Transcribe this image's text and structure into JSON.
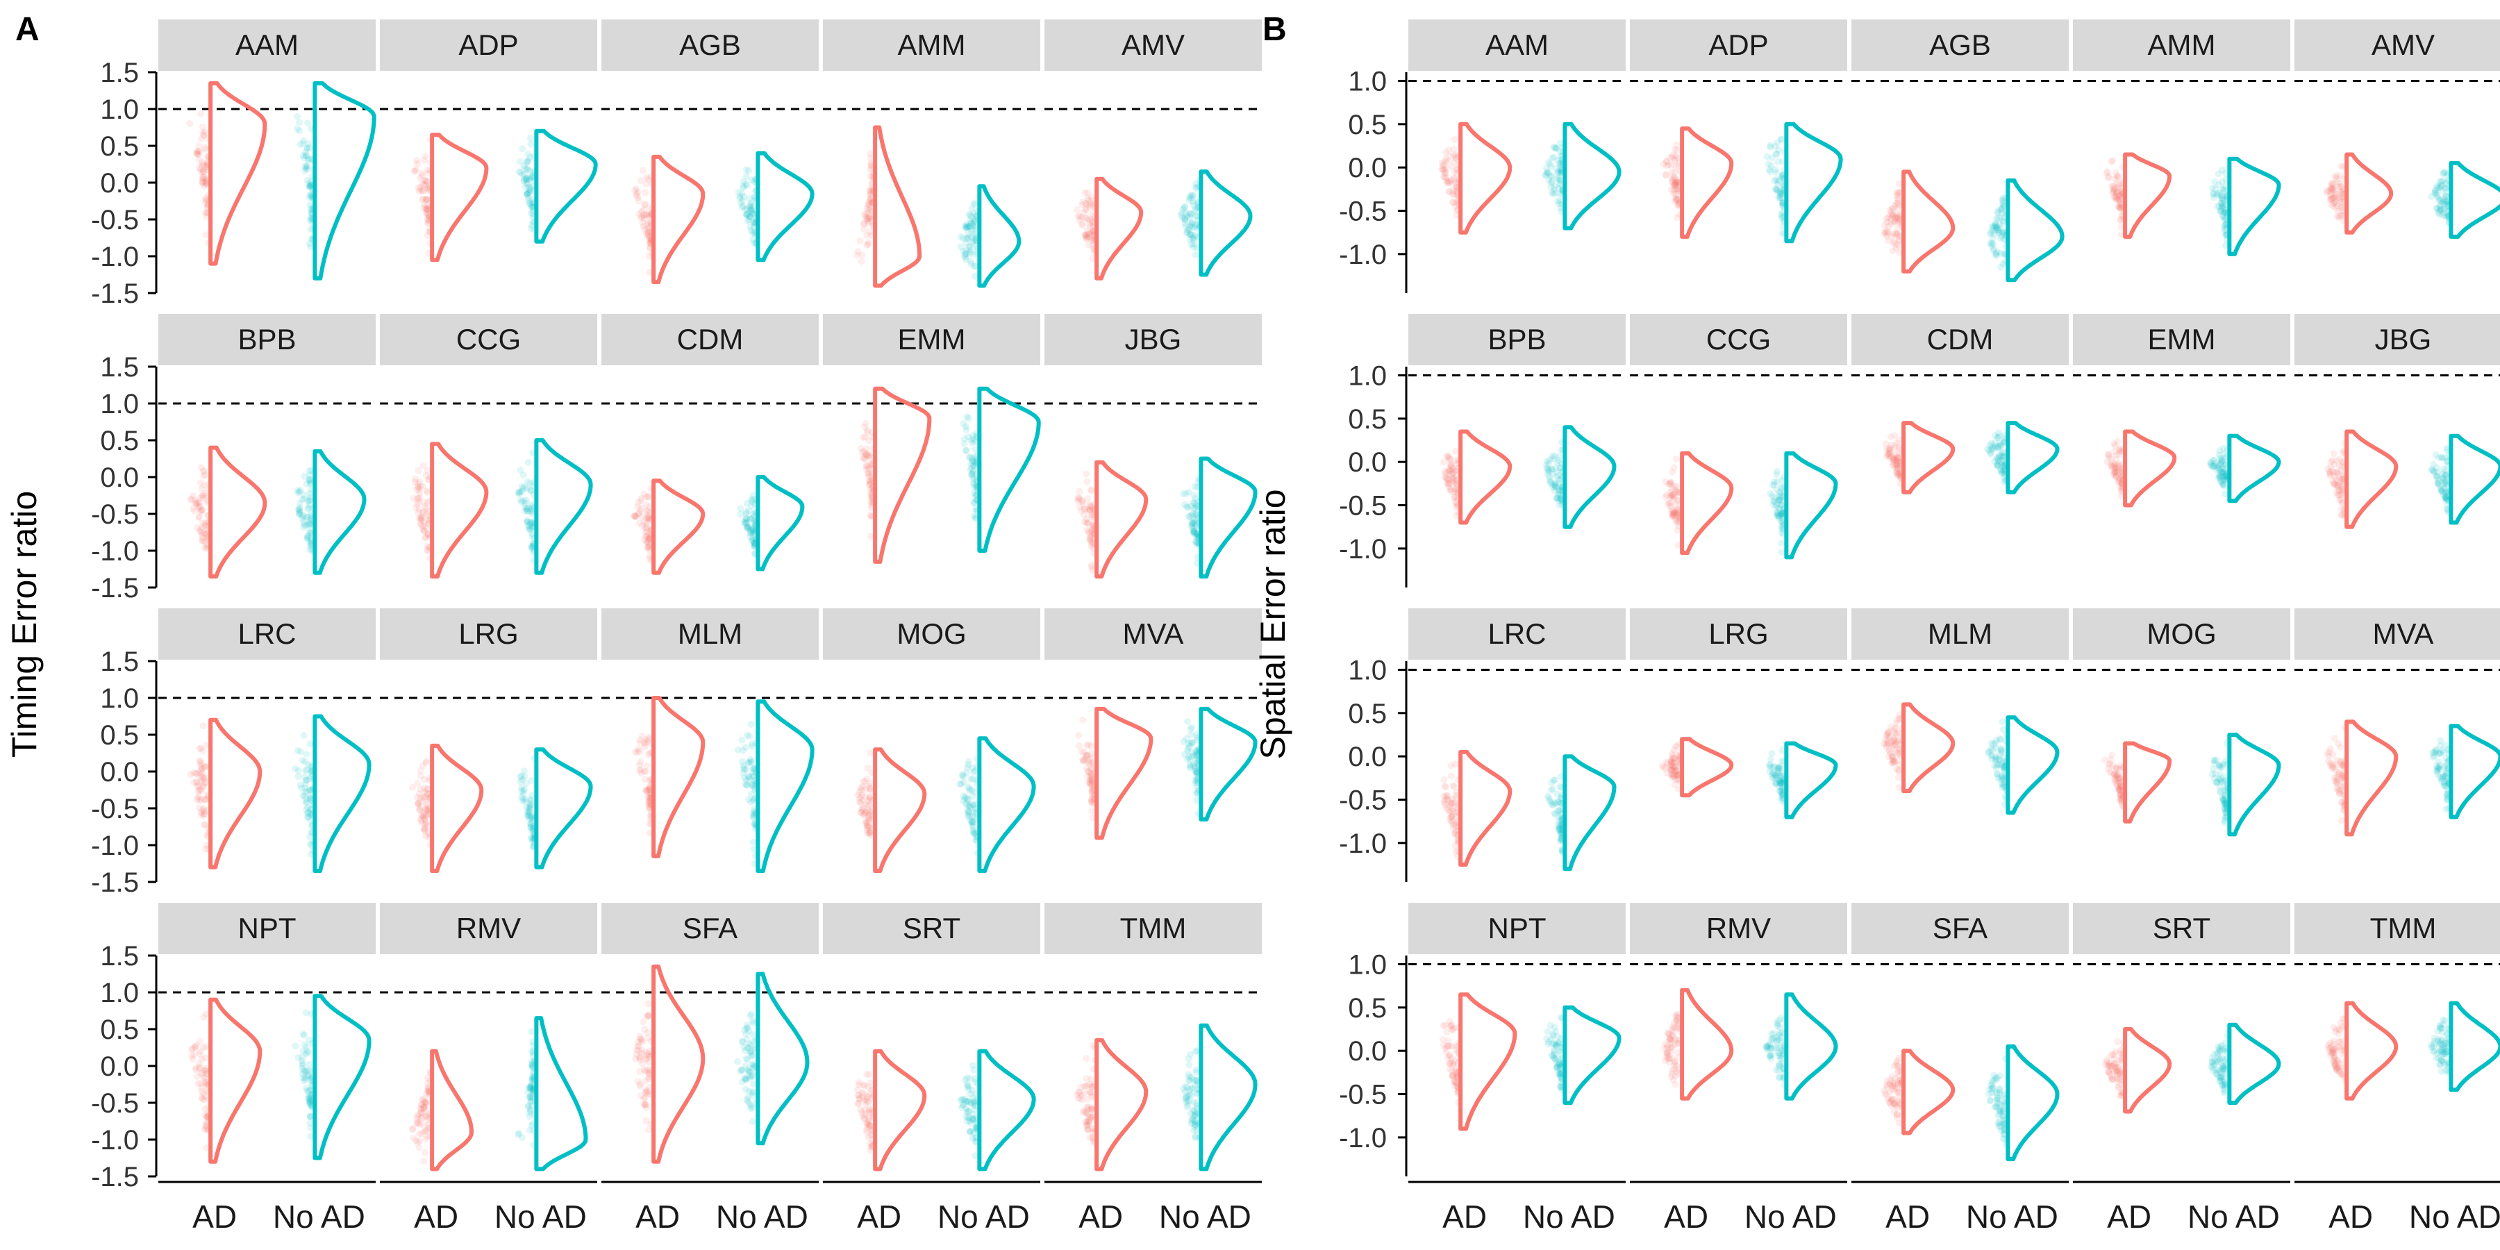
{
  "colors": {
    "ad": "#F8766D",
    "no_ad": "#00BFC4",
    "strip": "#D9D9D9",
    "reference_line": "#000000"
  },
  "chart_data": [
    {
      "type": "violin",
      "panel_label": "A",
      "ylabel": "Timing Error ratio",
      "xlabel": "",
      "x_categories": [
        "AD",
        "No AD"
      ],
      "y_ticks": [
        "-1.5",
        "-1.0",
        "-0.5",
        "0.0",
        "0.5",
        "1.0",
        "1.5"
      ],
      "ylim": [
        -1.5,
        1.5
      ],
      "reference_line": 1.0,
      "facets": [
        {
          "name": "AAM",
          "AD": {
            "min": -1.1,
            "max": 1.35,
            "mode": 0.8,
            "width": 0.55
          },
          "No AD": {
            "min": -1.3,
            "max": 1.35,
            "mode": 0.9,
            "width": 0.6
          }
        },
        {
          "name": "ADP",
          "AD": {
            "min": -1.05,
            "max": 0.65,
            "mode": 0.2,
            "width": 0.55
          },
          "No AD": {
            "min": -0.8,
            "max": 0.7,
            "mode": 0.25,
            "width": 0.6
          }
        },
        {
          "name": "AGB",
          "AD": {
            "min": -1.35,
            "max": 0.35,
            "mode": -0.15,
            "width": 0.5
          },
          "No AD": {
            "min": -1.05,
            "max": 0.4,
            "mode": -0.15,
            "width": 0.55
          }
        },
        {
          "name": "AMM",
          "AD": {
            "min": -1.4,
            "max": 0.75,
            "mode": -1.0,
            "width": 0.45
          },
          "No AD": {
            "min": -1.4,
            "max": -0.05,
            "mode": -0.8,
            "width": 0.4
          }
        },
        {
          "name": "AMV",
          "AD": {
            "min": -1.3,
            "max": 0.05,
            "mode": -0.4,
            "width": 0.45
          },
          "No AD": {
            "min": -1.25,
            "max": 0.15,
            "mode": -0.45,
            "width": 0.5
          }
        },
        {
          "name": "BPB",
          "AD": {
            "min": -1.35,
            "max": 0.4,
            "mode": -0.35,
            "width": 0.55
          },
          "No AD": {
            "min": -1.3,
            "max": 0.35,
            "mode": -0.3,
            "width": 0.5
          }
        },
        {
          "name": "CCG",
          "AD": {
            "min": -1.35,
            "max": 0.45,
            "mode": -0.2,
            "width": 0.55
          },
          "No AD": {
            "min": -1.3,
            "max": 0.5,
            "mode": -0.1,
            "width": 0.55
          }
        },
        {
          "name": "CDM",
          "AD": {
            "min": -1.3,
            "max": -0.05,
            "mode": -0.5,
            "width": 0.5
          },
          "No AD": {
            "min": -1.25,
            "max": 0.0,
            "mode": -0.4,
            "width": 0.45
          }
        },
        {
          "name": "EMM",
          "AD": {
            "min": -1.15,
            "max": 1.2,
            "mode": 0.8,
            "width": 0.55
          },
          "No AD": {
            "min": -1.0,
            "max": 1.2,
            "mode": 0.75,
            "width": 0.6
          }
        },
        {
          "name": "JBG",
          "AD": {
            "min": -1.35,
            "max": 0.2,
            "mode": -0.3,
            "width": 0.5
          },
          "No AD": {
            "min": -1.35,
            "max": 0.25,
            "mode": -0.2,
            "width": 0.55
          }
        },
        {
          "name": "LRC",
          "AD": {
            "min": -1.3,
            "max": 0.7,
            "mode": 0.0,
            "width": 0.5
          },
          "No AD": {
            "min": -1.35,
            "max": 0.75,
            "mode": 0.1,
            "width": 0.55
          }
        },
        {
          "name": "LRG",
          "AD": {
            "min": -1.35,
            "max": 0.35,
            "mode": -0.25,
            "width": 0.5
          },
          "No AD": {
            "min": -1.3,
            "max": 0.3,
            "mode": -0.2,
            "width": 0.55
          }
        },
        {
          "name": "MLM",
          "AD": {
            "min": -1.15,
            "max": 1.0,
            "mode": 0.4,
            "width": 0.5
          },
          "No AD": {
            "min": -1.35,
            "max": 0.95,
            "mode": 0.3,
            "width": 0.55
          }
        },
        {
          "name": "MOG",
          "AD": {
            "min": -1.35,
            "max": 0.3,
            "mode": -0.3,
            "width": 0.5
          },
          "No AD": {
            "min": -1.35,
            "max": 0.45,
            "mode": -0.2,
            "width": 0.55
          }
        },
        {
          "name": "MVA",
          "AD": {
            "min": -0.9,
            "max": 0.85,
            "mode": 0.45,
            "width": 0.55
          },
          "No AD": {
            "min": -0.65,
            "max": 0.85,
            "mode": 0.4,
            "width": 0.55
          }
        },
        {
          "name": "NPT",
          "AD": {
            "min": -1.3,
            "max": 0.9,
            "mode": 0.2,
            "width": 0.5
          },
          "No AD": {
            "min": -1.25,
            "max": 0.95,
            "mode": 0.35,
            "width": 0.55
          }
        },
        {
          "name": "RMV",
          "AD": {
            "min": -1.4,
            "max": 0.2,
            "mode": -0.9,
            "width": 0.4
          },
          "No AD": {
            "min": -1.4,
            "max": 0.65,
            "mode": -1.0,
            "width": 0.5
          }
        },
        {
          "name": "SFA",
          "AD": {
            "min": -1.3,
            "max": 1.35,
            "mode": 0.1,
            "width": 0.5
          },
          "No AD": {
            "min": -1.05,
            "max": 1.25,
            "mode": 0.05,
            "width": 0.5
          }
        },
        {
          "name": "SRT",
          "AD": {
            "min": -1.4,
            "max": 0.2,
            "mode": -0.4,
            "width": 0.5
          },
          "No AD": {
            "min": -1.4,
            "max": 0.2,
            "mode": -0.45,
            "width": 0.55
          }
        },
        {
          "name": "TMM",
          "AD": {
            "min": -1.4,
            "max": 0.35,
            "mode": -0.35,
            "width": 0.5
          },
          "No AD": {
            "min": -1.4,
            "max": 0.55,
            "mode": -0.25,
            "width": 0.55
          }
        }
      ]
    },
    {
      "type": "violin",
      "panel_label": "B",
      "ylabel": "Spatial Error ratio",
      "xlabel": "",
      "x_categories": [
        "AD",
        "No AD"
      ],
      "y_ticks": [
        "-1.0",
        "-0.5",
        "0.0",
        "0.5",
        "1.0"
      ],
      "ylim": [
        -1.45,
        1.1
      ],
      "reference_line": 1.0,
      "facets": [
        {
          "name": "AAM",
          "AD": {
            "min": -0.75,
            "max": 0.5,
            "mode": 0.0,
            "width": 0.5
          },
          "No AD": {
            "min": -0.7,
            "max": 0.5,
            "mode": -0.05,
            "width": 0.55
          }
        },
        {
          "name": "ADP",
          "AD": {
            "min": -0.8,
            "max": 0.45,
            "mode": 0.05,
            "width": 0.5
          },
          "No AD": {
            "min": -0.85,
            "max": 0.5,
            "mode": 0.1,
            "width": 0.55
          }
        },
        {
          "name": "AGB",
          "AD": {
            "min": -1.2,
            "max": -0.05,
            "mode": -0.7,
            "width": 0.5
          },
          "No AD": {
            "min": -1.3,
            "max": -0.15,
            "mode": -0.8,
            "width": 0.55
          }
        },
        {
          "name": "AMM",
          "AD": {
            "min": -0.8,
            "max": 0.15,
            "mode": -0.1,
            "width": 0.45
          },
          "No AD": {
            "min": -1.0,
            "max": 0.1,
            "mode": -0.2,
            "width": 0.5
          }
        },
        {
          "name": "AMV",
          "AD": {
            "min": -0.75,
            "max": 0.15,
            "mode": -0.3,
            "width": 0.45
          },
          "No AD": {
            "min": -0.8,
            "max": 0.05,
            "mode": -0.35,
            "width": 0.55
          }
        },
        {
          "name": "BPB",
          "AD": {
            "min": -0.7,
            "max": 0.35,
            "mode": -0.05,
            "width": 0.5
          },
          "No AD": {
            "min": -0.75,
            "max": 0.4,
            "mode": -0.05,
            "width": 0.5
          }
        },
        {
          "name": "CCG",
          "AD": {
            "min": -1.05,
            "max": 0.1,
            "mode": -0.3,
            "width": 0.5
          },
          "No AD": {
            "min": -1.1,
            "max": 0.1,
            "mode": -0.25,
            "width": 0.5
          }
        },
        {
          "name": "CDM",
          "AD": {
            "min": -0.35,
            "max": 0.45,
            "mode": 0.15,
            "width": 0.5
          },
          "No AD": {
            "min": -0.35,
            "max": 0.45,
            "mode": 0.15,
            "width": 0.5
          }
        },
        {
          "name": "EMM",
          "AD": {
            "min": -0.5,
            "max": 0.35,
            "mode": 0.05,
            "width": 0.5
          },
          "No AD": {
            "min": -0.45,
            "max": 0.3,
            "mode": 0.0,
            "width": 0.5
          }
        },
        {
          "name": "JBG",
          "AD": {
            "min": -0.75,
            "max": 0.35,
            "mode": -0.05,
            "width": 0.5
          },
          "No AD": {
            "min": -0.7,
            "max": 0.3,
            "mode": -0.05,
            "width": 0.5
          }
        },
        {
          "name": "LRC",
          "AD": {
            "min": -1.25,
            "max": 0.05,
            "mode": -0.4,
            "width": 0.5
          },
          "No AD": {
            "min": -1.3,
            "max": 0.0,
            "mode": -0.35,
            "width": 0.5
          }
        },
        {
          "name": "LRG",
          "AD": {
            "min": -0.45,
            "max": 0.2,
            "mode": -0.1,
            "width": 0.5
          },
          "No AD": {
            "min": -0.7,
            "max": 0.15,
            "mode": -0.1,
            "width": 0.5
          }
        },
        {
          "name": "MLM",
          "AD": {
            "min": -0.4,
            "max": 0.6,
            "mode": 0.15,
            "width": 0.5
          },
          "No AD": {
            "min": -0.65,
            "max": 0.45,
            "mode": 0.05,
            "width": 0.5
          }
        },
        {
          "name": "MOG",
          "AD": {
            "min": -0.75,
            "max": 0.15,
            "mode": -0.05,
            "width": 0.45
          },
          "No AD": {
            "min": -0.9,
            "max": 0.25,
            "mode": -0.1,
            "width": 0.5
          }
        },
        {
          "name": "MVA",
          "AD": {
            "min": -0.9,
            "max": 0.4,
            "mode": 0.0,
            "width": 0.5
          },
          "No AD": {
            "min": -0.7,
            "max": 0.35,
            "mode": 0.0,
            "width": 0.5
          }
        },
        {
          "name": "NPT",
          "AD": {
            "min": -0.9,
            "max": 0.65,
            "mode": 0.2,
            "width": 0.55
          },
          "No AD": {
            "min": -0.6,
            "max": 0.5,
            "mode": 0.15,
            "width": 0.55
          }
        },
        {
          "name": "RMV",
          "AD": {
            "min": -0.55,
            "max": 0.7,
            "mode": 0.0,
            "width": 0.5
          },
          "No AD": {
            "min": -0.55,
            "max": 0.65,
            "mode": 0.05,
            "width": 0.5
          }
        },
        {
          "name": "SFA",
          "AD": {
            "min": -0.95,
            "max": 0.0,
            "mode": -0.45,
            "width": 0.5
          },
          "No AD": {
            "min": -1.25,
            "max": 0.05,
            "mode": -0.5,
            "width": 0.5
          }
        },
        {
          "name": "SRT",
          "AD": {
            "min": -0.7,
            "max": 0.25,
            "mode": -0.15,
            "width": 0.45
          },
          "No AD": {
            "min": -0.6,
            "max": 0.3,
            "mode": -0.15,
            "width": 0.5
          }
        },
        {
          "name": "TMM",
          "AD": {
            "min": -0.55,
            "max": 0.55,
            "mode": 0.05,
            "width": 0.5
          },
          "No AD": {
            "min": -0.45,
            "max": 0.55,
            "mode": 0.05,
            "width": 0.5
          }
        }
      ]
    }
  ]
}
